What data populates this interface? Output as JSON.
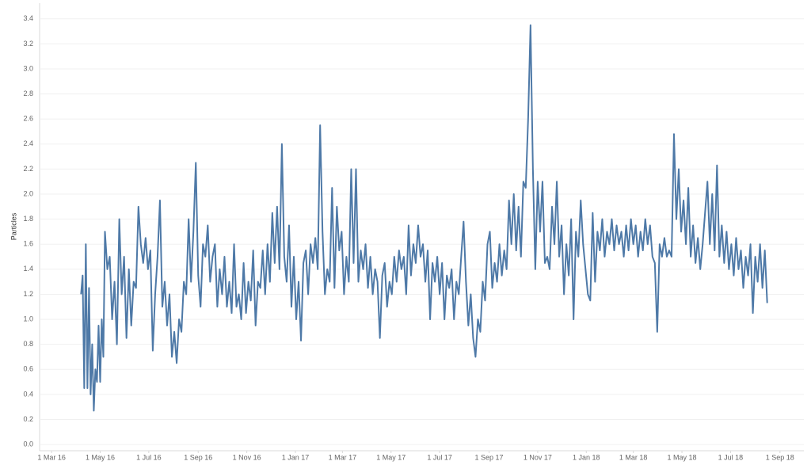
{
  "chart_data": {
    "type": "line",
    "y_label": "Particles",
    "color": "#4e79a7",
    "grid": true,
    "xlim": [
      "2016-02-15",
      "2018-10-01"
    ],
    "xticks": [
      {
        "value": "2016-03-01",
        "label": "1 Mar 16"
      },
      {
        "value": "2016-05-01",
        "label": "1 May 16"
      },
      {
        "value": "2016-07-01",
        "label": "1 Jul 16"
      },
      {
        "value": "2016-09-01",
        "label": "1 Sep 16"
      },
      {
        "value": "2016-11-01",
        "label": "1 Nov 16"
      },
      {
        "value": "2017-01-01",
        "label": "1 Jan 17"
      },
      {
        "value": "2017-03-01",
        "label": "1 Mar 17"
      },
      {
        "value": "2017-05-01",
        "label": "1 May 17"
      },
      {
        "value": "2017-07-01",
        "label": "1 Jul 17"
      },
      {
        "value": "2017-09-01",
        "label": "1 Sep 17"
      },
      {
        "value": "2017-11-01",
        "label": "1 Nov 17"
      },
      {
        "value": "2018-01-01",
        "label": "1 Jan 18"
      },
      {
        "value": "2018-03-01",
        "label": "1 Mar 18"
      },
      {
        "value": "2018-05-01",
        "label": "1 May 18"
      },
      {
        "value": "2018-07-01",
        "label": "1 Jul 18"
      },
      {
        "value": "2018-09-01",
        "label": "1 Sep 18"
      }
    ],
    "ylim": [
      -0.05,
      3.5
    ],
    "yticks": [
      {
        "value": 0,
        "label": "0.0"
      },
      0.2,
      0.4,
      0.6,
      0.8,
      {
        "value": 1,
        "label": "1.0"
      },
      1.2,
      1.4,
      1.6,
      1.8,
      {
        "value": 2,
        "label": "2.0"
      },
      2.2,
      2.4,
      2.6,
      2.8,
      {
        "value": 3,
        "label": "3.0"
      },
      3.2,
      3.4
    ],
    "x": [
      "2016-04-07",
      "2016-04-09",
      "2016-04-11",
      "2016-04-13",
      "2016-04-15",
      "2016-04-17",
      "2016-04-19",
      "2016-04-21",
      "2016-04-23",
      "2016-04-25",
      "2016-04-27",
      "2016-04-29",
      "2016-05-01",
      "2016-05-03",
      "2016-05-05",
      "2016-05-07",
      "2016-05-10",
      "2016-05-13",
      "2016-05-16",
      "2016-05-19",
      "2016-05-22",
      "2016-05-25",
      "2016-05-28",
      "2016-05-31",
      "2016-06-03",
      "2016-06-06",
      "2016-06-09",
      "2016-06-12",
      "2016-06-15",
      "2016-06-18",
      "2016-06-21",
      "2016-06-24",
      "2016-06-27",
      "2016-06-30",
      "2016-07-03",
      "2016-07-06",
      "2016-07-09",
      "2016-07-12",
      "2016-07-15",
      "2016-07-18",
      "2016-07-21",
      "2016-07-24",
      "2016-07-27",
      "2016-07-30",
      "2016-08-02",
      "2016-08-05",
      "2016-08-08",
      "2016-08-11",
      "2016-08-14",
      "2016-08-17",
      "2016-08-20",
      "2016-08-23",
      "2016-08-26",
      "2016-08-29",
      "2016-09-01",
      "2016-09-04",
      "2016-09-07",
      "2016-09-10",
      "2016-09-13",
      "2016-09-16",
      "2016-09-19",
      "2016-09-22",
      "2016-09-25",
      "2016-09-28",
      "2016-10-01",
      "2016-10-04",
      "2016-10-07",
      "2016-10-10",
      "2016-10-13",
      "2016-10-16",
      "2016-10-19",
      "2016-10-22",
      "2016-10-25",
      "2016-10-28",
      "2016-10-31",
      "2016-11-03",
      "2016-11-06",
      "2016-11-09",
      "2016-11-12",
      "2016-11-15",
      "2016-11-18",
      "2016-11-21",
      "2016-11-24",
      "2016-11-27",
      "2016-11-30",
      "2016-12-03",
      "2016-12-06",
      "2016-12-09",
      "2016-12-12",
      "2016-12-15",
      "2016-12-18",
      "2016-12-21",
      "2016-12-24",
      "2016-12-27",
      "2016-12-30",
      "2017-01-02",
      "2017-01-05",
      "2017-01-08",
      "2017-01-11",
      "2017-01-14",
      "2017-01-17",
      "2017-01-20",
      "2017-01-23",
      "2017-01-26",
      "2017-01-29",
      "2017-02-01",
      "2017-02-04",
      "2017-02-07",
      "2017-02-10",
      "2017-02-13",
      "2017-02-16",
      "2017-02-19",
      "2017-02-22",
      "2017-02-25",
      "2017-02-28",
      "2017-03-03",
      "2017-03-06",
      "2017-03-09",
      "2017-03-12",
      "2017-03-15",
      "2017-03-18",
      "2017-03-21",
      "2017-03-24",
      "2017-03-27",
      "2017-03-30",
      "2017-04-02",
      "2017-04-05",
      "2017-04-08",
      "2017-04-11",
      "2017-04-14",
      "2017-04-17",
      "2017-04-20",
      "2017-04-23",
      "2017-04-26",
      "2017-04-29",
      "2017-05-02",
      "2017-05-05",
      "2017-05-08",
      "2017-05-11",
      "2017-05-14",
      "2017-05-17",
      "2017-05-20",
      "2017-05-23",
      "2017-05-26",
      "2017-05-29",
      "2017-06-01",
      "2017-06-04",
      "2017-06-07",
      "2017-06-10",
      "2017-06-13",
      "2017-06-16",
      "2017-06-19",
      "2017-06-22",
      "2017-06-25",
      "2017-06-28",
      "2017-07-01",
      "2017-07-04",
      "2017-07-07",
      "2017-07-10",
      "2017-07-13",
      "2017-07-16",
      "2017-07-19",
      "2017-07-22",
      "2017-07-25",
      "2017-07-28",
      "2017-07-31",
      "2017-08-03",
      "2017-08-06",
      "2017-08-09",
      "2017-08-12",
      "2017-08-15",
      "2017-08-18",
      "2017-08-21",
      "2017-08-24",
      "2017-08-27",
      "2017-08-30",
      "2017-09-02",
      "2017-09-05",
      "2017-09-08",
      "2017-09-11",
      "2017-09-14",
      "2017-09-17",
      "2017-09-20",
      "2017-09-23",
      "2017-09-26",
      "2017-09-29",
      "2017-10-02",
      "2017-10-05",
      "2017-10-08",
      "2017-10-11",
      "2017-10-14",
      "2017-10-17",
      "2017-10-20",
      "2017-10-23",
      "2017-10-26",
      "2017-10-29",
      "2017-11-01",
      "2017-11-04",
      "2017-11-07",
      "2017-11-10",
      "2017-11-13",
      "2017-11-16",
      "2017-11-19",
      "2017-11-22",
      "2017-11-25",
      "2017-11-28",
      "2017-12-01",
      "2017-12-04",
      "2017-12-07",
      "2017-12-10",
      "2017-12-13",
      "2017-12-16",
      "2017-12-19",
      "2017-12-22",
      "2017-12-25",
      "2017-12-28",
      "2017-12-31",
      "2018-01-03",
      "2018-01-06",
      "2018-01-09",
      "2018-01-12",
      "2018-01-15",
      "2018-01-18",
      "2018-01-21",
      "2018-01-24",
      "2018-01-27",
      "2018-01-30",
      "2018-02-02",
      "2018-02-05",
      "2018-02-08",
      "2018-02-11",
      "2018-02-14",
      "2018-02-17",
      "2018-02-20",
      "2018-02-23",
      "2018-02-26",
      "2018-03-01",
      "2018-03-04",
      "2018-03-07",
      "2018-03-10",
      "2018-03-13",
      "2018-03-16",
      "2018-03-19",
      "2018-03-22",
      "2018-03-25",
      "2018-03-28",
      "2018-03-31",
      "2018-04-03",
      "2018-04-06",
      "2018-04-09",
      "2018-04-12",
      "2018-04-15",
      "2018-04-18",
      "2018-04-21",
      "2018-04-24",
      "2018-04-27",
      "2018-04-30",
      "2018-05-03",
      "2018-05-06",
      "2018-05-09",
      "2018-05-12",
      "2018-05-15",
      "2018-05-18",
      "2018-05-21",
      "2018-05-24",
      "2018-05-27",
      "2018-05-30",
      "2018-06-02",
      "2018-06-05",
      "2018-06-08",
      "2018-06-11",
      "2018-06-14",
      "2018-06-17",
      "2018-06-20",
      "2018-06-23",
      "2018-06-26",
      "2018-06-29",
      "2018-07-02",
      "2018-07-05",
      "2018-07-08",
      "2018-07-11",
      "2018-07-14",
      "2018-07-17",
      "2018-07-20",
      "2018-07-23",
      "2018-07-26",
      "2018-07-29",
      "2018-08-01",
      "2018-08-04",
      "2018-08-07",
      "2018-08-10",
      "2018-08-13",
      "2018-08-16"
    ],
    "values": [
      1.2,
      1.35,
      0.45,
      1.6,
      0.45,
      1.25,
      0.4,
      0.8,
      0.27,
      0.6,
      0.5,
      0.95,
      0.5,
      1.0,
      0.7,
      1.7,
      1.4,
      1.5,
      1.0,
      1.3,
      0.8,
      1.8,
      1.2,
      1.5,
      0.85,
      1.4,
      0.95,
      1.3,
      1.25,
      1.9,
      1.6,
      1.45,
      1.65,
      1.4,
      1.55,
      0.75,
      1.2,
      1.5,
      1.95,
      1.1,
      1.3,
      0.95,
      1.2,
      0.7,
      0.9,
      0.65,
      1.0,
      0.9,
      1.3,
      1.2,
      1.8,
      1.3,
      1.7,
      2.25,
      1.35,
      1.1,
      1.6,
      1.5,
      1.75,
      1.3,
      1.5,
      1.6,
      1.1,
      1.4,
      1.2,
      1.5,
      1.1,
      1.3,
      1.05,
      1.6,
      1.1,
      1.2,
      1.0,
      1.45,
      1.05,
      1.3,
      1.15,
      1.55,
      0.95,
      1.3,
      1.25,
      1.55,
      1.2,
      1.6,
      1.3,
      1.85,
      1.45,
      1.9,
      1.4,
      2.4,
      1.5,
      1.3,
      1.75,
      1.1,
      1.5,
      1.0,
      1.3,
      0.83,
      1.45,
      1.55,
      1.2,
      1.6,
      1.45,
      1.65,
      1.4,
      2.55,
      1.7,
      1.2,
      1.4,
      1.3,
      2.05,
      1.25,
      1.9,
      1.55,
      1.7,
      1.2,
      1.5,
      1.3,
      2.2,
      1.45,
      2.2,
      1.3,
      1.55,
      1.4,
      1.6,
      1.25,
      1.5,
      1.2,
      1.4,
      1.3,
      0.85,
      1.35,
      1.45,
      1.1,
      1.3,
      1.2,
      1.5,
      1.3,
      1.55,
      1.4,
      1.5,
      1.2,
      1.75,
      1.35,
      1.6,
      1.45,
      1.75,
      1.5,
      1.6,
      1.3,
      1.55,
      1.0,
      1.45,
      1.3,
      1.5,
      1.2,
      1.45,
      1.0,
      1.35,
      1.25,
      1.4,
      1.0,
      1.3,
      1.2,
      1.5,
      1.78,
      1.3,
      0.95,
      1.2,
      0.85,
      0.7,
      1.0,
      0.9,
      1.3,
      1.15,
      1.6,
      1.7,
      1.25,
      1.45,
      1.3,
      1.6,
      1.35,
      1.55,
      1.4,
      1.95,
      1.6,
      2.0,
      1.55,
      1.9,
      1.5,
      2.1,
      2.05,
      2.6,
      3.35,
      2.2,
      1.4,
      2.1,
      1.7,
      2.1,
      1.45,
      1.5,
      1.4,
      1.9,
      1.6,
      2.1,
      1.5,
      1.75,
      1.2,
      1.6,
      1.35,
      1.8,
      1.0,
      1.7,
      1.5,
      1.95,
      1.6,
      1.4,
      1.2,
      1.15,
      1.85,
      1.3,
      1.7,
      1.55,
      1.8,
      1.5,
      1.7,
      1.6,
      1.8,
      1.55,
      1.75,
      1.6,
      1.7,
      1.5,
      1.75,
      1.55,
      1.8,
      1.6,
      1.75,
      1.5,
      1.7,
      1.55,
      1.8,
      1.6,
      1.75,
      1.5,
      1.45,
      0.9,
      1.6,
      1.5,
      1.65,
      1.5,
      1.55,
      1.5,
      2.48,
      1.8,
      2.2,
      1.7,
      1.95,
      1.6,
      2.05,
      1.5,
      1.75,
      1.45,
      1.65,
      1.4,
      1.6,
      1.85,
      2.1,
      1.6,
      2.0,
      1.55,
      2.23,
      1.5,
      1.75,
      1.45,
      1.7,
      1.4,
      1.6,
      1.35,
      1.65,
      1.4,
      1.55,
      1.25,
      1.5,
      1.35,
      1.6,
      1.05,
      1.5,
      1.3,
      1.6,
      1.25,
      1.55,
      1.13
    ]
  }
}
